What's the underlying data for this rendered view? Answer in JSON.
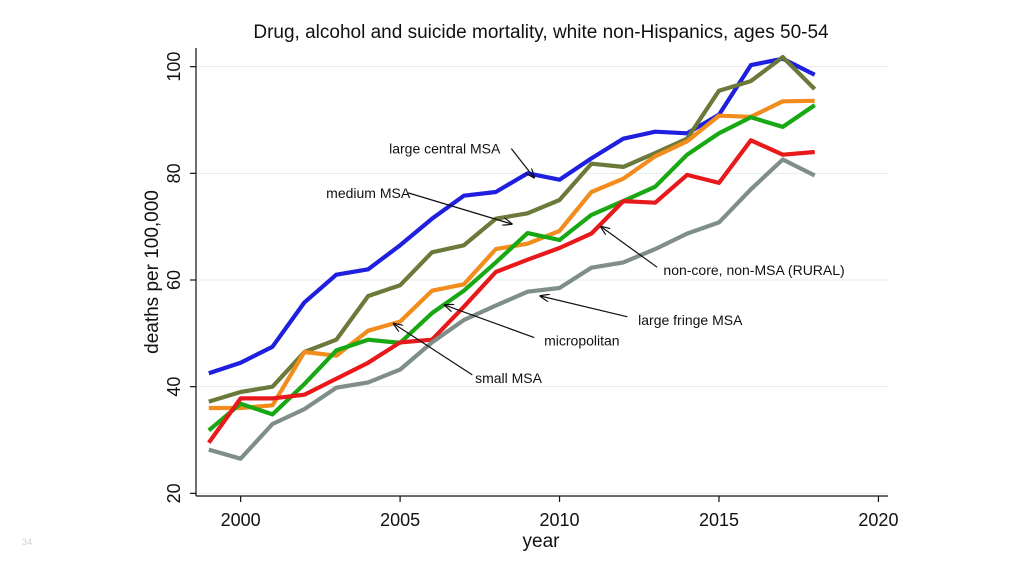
{
  "slide_number": "34",
  "chart_data": {
    "type": "line",
    "title": "Drug, alcohol and suicide mortality, white non-Hispanics, ages 50-54",
    "xlabel": "year",
    "ylabel": "deaths per 100,000",
    "xlim": [
      1998.6,
      2020.3
    ],
    "ylim": [
      19.5,
      103.5
    ],
    "xticks": [
      2000,
      2005,
      2010,
      2015,
      2020
    ],
    "yticks": [
      20,
      40,
      60,
      80,
      100
    ],
    "grid": true,
    "x": [
      1999,
      2000,
      2001,
      2002,
      2003,
      2004,
      2005,
      2006,
      2007,
      2008,
      2009,
      2010,
      2011,
      2012,
      2013,
      2014,
      2015,
      2016,
      2017,
      2018
    ],
    "series": [
      {
        "name": "large central MSA",
        "color": "#1f1fe0",
        "values": [
          42.5,
          44.5,
          47.5,
          55.8,
          61.0,
          62.0,
          66.5,
          71.5,
          75.8,
          76.5,
          80.0,
          78.8,
          82.8,
          86.5,
          87.8,
          87.5,
          91.0,
          100.3,
          101.5,
          98.5
        ]
      },
      {
        "name": "medium MSA",
        "color": "#6b7a3a",
        "values": [
          37.2,
          39.0,
          40.0,
          46.5,
          48.8,
          57.0,
          59.0,
          65.2,
          66.5,
          71.5,
          72.5,
          75.0,
          81.8,
          81.2,
          83.8,
          86.5,
          95.5,
          97.3,
          101.8,
          95.8
        ]
      },
      {
        "name": "small MSA",
        "color": "#f28c1c",
        "values": [
          36.0,
          36.0,
          36.5,
          46.5,
          45.8,
          50.5,
          52.2,
          58.0,
          59.2,
          65.8,
          66.8,
          69.2,
          76.5,
          79.0,
          83.2,
          86.0,
          90.8,
          90.6,
          93.5,
          93.6
        ]
      },
      {
        "name": "micropolitan",
        "color": "#17a814",
        "values": [
          31.8,
          36.8,
          34.8,
          40.5,
          46.8,
          48.8,
          48.2,
          53.8,
          58.0,
          63.3,
          68.8,
          67.5,
          72.2,
          74.8,
          77.5,
          83.5,
          87.5,
          90.5,
          88.7,
          92.8
        ]
      },
      {
        "name": "non-core, non-MSA (RURAL)",
        "color": "#e8191b",
        "values": [
          29.5,
          37.8,
          37.8,
          38.5,
          41.5,
          44.5,
          48.3,
          48.8,
          55.0,
          61.5,
          63.8,
          66.0,
          68.7,
          74.8,
          74.5,
          79.7,
          78.2,
          86.2,
          83.5,
          84.0
        ]
      },
      {
        "name": "large fringe MSA",
        "color": "#7f8f87",
        "values": [
          28.2,
          26.5,
          33.0,
          35.8,
          39.8,
          40.8,
          43.2,
          48.3,
          52.5,
          55.2,
          57.8,
          58.5,
          62.3,
          63.3,
          65.8,
          68.7,
          70.8,
          77.0,
          82.6,
          79.6
        ]
      }
    ],
    "annotations": [
      {
        "label": "large central MSA",
        "text_x": 2006.4,
        "text_y": 83.7,
        "arrow_to": [
          2009.2,
          79.2
        ]
      },
      {
        "label": "medium MSA",
        "text_x": 2004.0,
        "text_y": 75.4,
        "arrow_to": [
          2008.5,
          70.5
        ]
      },
      {
        "label": "non-core, non-MSA (RURAL)",
        "text_x": 2016.1,
        "text_y": 60.9,
        "arrow_to": [
          2011.3,
          70.0
        ]
      },
      {
        "label": "large fringe MSA",
        "text_x": 2014.1,
        "text_y": 51.6,
        "arrow_to": [
          2009.4,
          57.0
        ]
      },
      {
        "label": "micropolitan",
        "text_x": 2010.7,
        "text_y": 47.7,
        "arrow_to": [
          2006.4,
          55.3
        ]
      },
      {
        "label": "small MSA",
        "text_x": 2008.4,
        "text_y": 40.7,
        "arrow_to": [
          2004.8,
          51.8
        ]
      }
    ]
  }
}
